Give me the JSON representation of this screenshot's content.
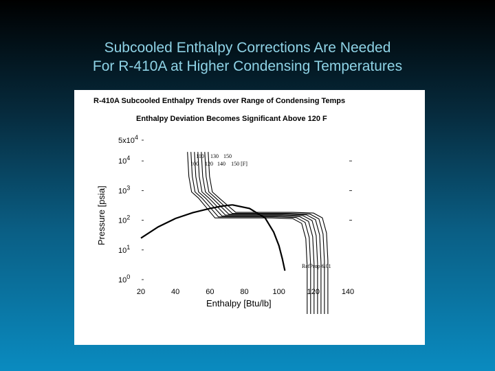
{
  "slide": {
    "title_line1": "Subcooled Enthalpy Corrections Are Needed",
    "title_line2": "For R-410A at Higher Condensing Temperatures"
  },
  "colors": {
    "panel": "#ffffff",
    "title": "#8fd3e6",
    "ink": "#000000"
  },
  "chart_data": {
    "type": "line",
    "title": "R-410A Subcooled Enthalpy Trends over Range of Condensing Temps",
    "subtitle": "Enthalpy Deviation Becomes Significant Above 120 F",
    "xlabel": "Enthalpy [Btu/lb]",
    "ylabel": "Pressure [psia]",
    "x_ticks": [
      "20",
      "40",
      "60",
      "80",
      "100",
      "120",
      "140"
    ],
    "xlim": [
      20,
      140
    ],
    "y_scale": "log",
    "y_ticks": [
      {
        "base": "10",
        "exp": "0",
        "value": 1
      },
      {
        "base": "10",
        "exp": "1",
        "value": 10
      },
      {
        "base": "10",
        "exp": "2",
        "value": 100
      },
      {
        "base": "10",
        "exp": "3",
        "value": 1000
      },
      {
        "base": "10",
        "exp": "4",
        "value": 10000
      },
      {
        "base": "5x10",
        "exp": "4",
        "value": 50000
      }
    ],
    "ylim": [
      1,
      50000
    ],
    "condensing_temps_row1": [
      "110",
      "130",
      "150"
    ],
    "condensing_temps_row2": [
      "100",
      "120",
      "140",
      "150 [F]"
    ],
    "annotation": "RefProp 6.01",
    "saturation_dome": {
      "liquid": [
        [
          20,
          25
        ],
        [
          30,
          60
        ],
        [
          40,
          115
        ],
        [
          50,
          180
        ],
        [
          60,
          250
        ],
        [
          67,
          300
        ],
        [
          73,
          330
        ]
      ],
      "vapor": [
        [
          73,
          330
        ],
        [
          83,
          250
        ],
        [
          92,
          120
        ],
        [
          97,
          40
        ],
        [
          100,
          14
        ],
        [
          102,
          5
        ],
        [
          103.5,
          2
        ]
      ]
    },
    "series": [
      {
        "t": 100,
        "h_liquid": 47,
        "p_knee": 120,
        "h_vapor": 116
      },
      {
        "t": 105,
        "h_liquid": 49,
        "p_knee": 130,
        "h_vapor": 118
      },
      {
        "t": 110,
        "h_liquid": 51,
        "p_knee": 140,
        "h_vapor": 120
      },
      {
        "t": 120,
        "h_liquid": 53,
        "p_knee": 150,
        "h_vapor": 122
      },
      {
        "t": 130,
        "h_liquid": 55,
        "p_knee": 160,
        "h_vapor": 124
      },
      {
        "t": 140,
        "h_liquid": 57,
        "p_knee": 170,
        "h_vapor": 126
      },
      {
        "t": 150,
        "h_liquid": 59,
        "p_knee": 185,
        "h_vapor": 128
      }
    ]
  }
}
